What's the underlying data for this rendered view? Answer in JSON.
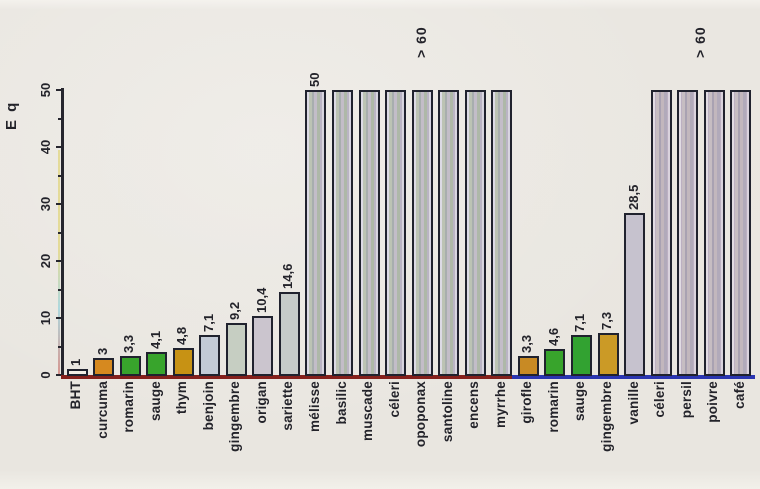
{
  "chart_data": {
    "type": "bar",
    "title": "",
    "ylabel": "E q",
    "xlabel": "",
    "ylim": [
      0,
      50
    ],
    "yticks": [
      0,
      10,
      20,
      30,
      40,
      50
    ],
    "minor_tick_values": [
      5,
      15,
      25,
      35,
      45
    ],
    "grid": false,
    "text_rotation_deg": -90,
    "bars": [
      {
        "category": "BHT",
        "value": 1,
        "label": "1",
        "color": "#f1ede4",
        "style": "solid"
      },
      {
        "category": "curcuma",
        "value": 3,
        "label": "3",
        "color": "#d6891f",
        "style": "solid"
      },
      {
        "category": "romarin",
        "value": 3.3,
        "label": "3,3",
        "color": "#38a42c",
        "style": "solid"
      },
      {
        "category": "sauge",
        "value": 4.1,
        "label": "4,1",
        "color": "#38a42c",
        "style": "solid"
      },
      {
        "category": "thym",
        "value": 4.8,
        "label": "4,8",
        "color": "#c79214",
        "style": "solid"
      },
      {
        "category": "benjoin",
        "value": 7.1,
        "label": "7,1",
        "color": "#c3cad6",
        "style": "solid"
      },
      {
        "category": "gingembre",
        "value": 9.2,
        "label": "9,2",
        "color": "#c6cec2",
        "style": "solid"
      },
      {
        "category": "origan",
        "value": 10.4,
        "label": "10,4",
        "color": "#cbc5ce",
        "style": "solid"
      },
      {
        "category": "sariette",
        "value": 14.6,
        "label": "14,6",
        "color": "#c6cbc9",
        "style": "solid"
      },
      {
        "category": "mélisse",
        "value": 50,
        "label": "50",
        "color": "",
        "style": "striped1"
      },
      {
        "category": "basilic",
        "value": 50,
        "label": "",
        "color": "",
        "style": "striped1"
      },
      {
        "category": "muscade",
        "value": 50,
        "label": "",
        "color": "",
        "style": "striped1"
      },
      {
        "category": "céleri",
        "value": 50,
        "label": "",
        "color": "",
        "style": "striped1"
      },
      {
        "category": "opoponax",
        "value": 50,
        "label": "",
        "color": "",
        "style": "striped1"
      },
      {
        "category": "santoline",
        "value": 50,
        "label": "",
        "color": "",
        "style": "striped1"
      },
      {
        "category": "encens",
        "value": 50,
        "label": "",
        "color": "",
        "style": "striped1"
      },
      {
        "category": "myrrhe",
        "value": 50,
        "label": "",
        "color": "",
        "style": "striped1"
      },
      {
        "category": "girofle",
        "value": 3.3,
        "label": "3,3",
        "color": "#c88a24",
        "style": "solid"
      },
      {
        "category": "romarin",
        "value": 4.6,
        "label": "4,6",
        "color": "#38a42c",
        "style": "solid"
      },
      {
        "category": "sauge",
        "value": 7.1,
        "label": "7,1",
        "color": "#32a231",
        "style": "solid"
      },
      {
        "category": "gingembre",
        "value": 7.3,
        "label": "7,3",
        "color": "#cb9a26",
        "style": "solid"
      },
      {
        "category": "vanille",
        "value": 28.5,
        "label": "28,5",
        "color": "#c6c2ce",
        "style": "solid"
      },
      {
        "category": "céleri",
        "value": 50,
        "label": "",
        "color": "",
        "style": "striped2"
      },
      {
        "category": "persil",
        "value": 50,
        "label": "",
        "color": "",
        "style": "striped2"
      },
      {
        "category": "poivre",
        "value": 50,
        "label": "",
        "color": "",
        "style": "striped2"
      },
      {
        "category": "café",
        "value": 50,
        "label": "",
        "color": "",
        "style": "striped2"
      }
    ],
    "annotations": [
      {
        "text": "> 60",
        "bar_start_index": 10,
        "bar_end_index": 16
      },
      {
        "text": "> 60",
        "bar_start_index": 22,
        "bar_end_index": 25
      }
    ],
    "baseline_colors": {
      "left_segment": "#84201c",
      "right_segment": "#2a35b0"
    },
    "bar_outline_color": "#20222e"
  }
}
